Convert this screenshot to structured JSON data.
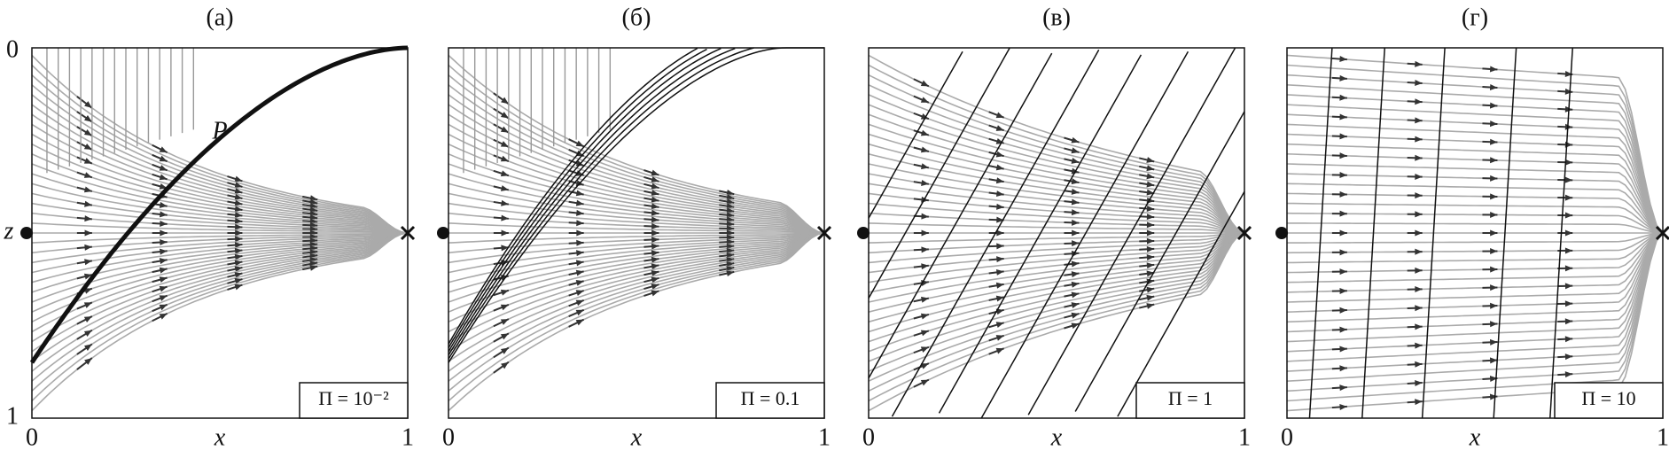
{
  "panels": [
    {
      "title": "(а)",
      "x_label": "x",
      "x_ticks": [
        "0",
        "1"
      ],
      "z_label": "z",
      "z_ticks": [
        "0",
        "1"
      ],
      "parameter": "Π = 10⁻²",
      "point_label": "P"
    },
    {
      "title": "(б)",
      "x_label": "x",
      "x_ticks": [
        "0",
        "1"
      ],
      "parameter": "Π = 0.1"
    },
    {
      "title": "(в)",
      "x_label": "x",
      "x_ticks": [
        "0",
        "1"
      ],
      "parameter": "Π = 1"
    },
    {
      "title": "(г)",
      "x_label": "x",
      "x_ticks": [
        "0",
        "1"
      ],
      "parameter": "Π = 10"
    }
  ]
}
